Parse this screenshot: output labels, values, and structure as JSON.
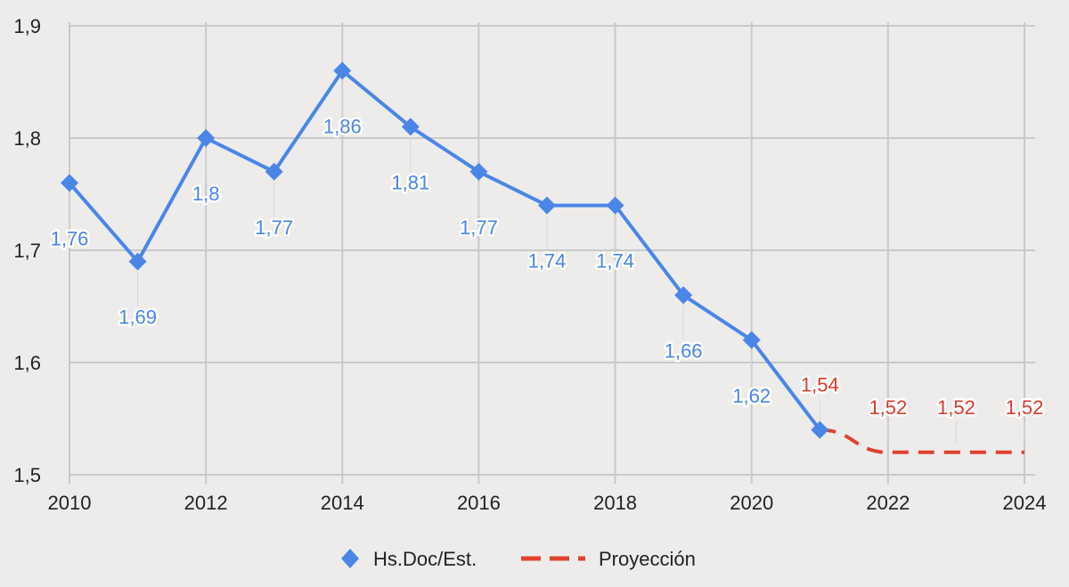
{
  "colors": {
    "actual": "#4a86e8",
    "projection": "#e0412f",
    "grid": "#c9c9c9",
    "label_actual": "#4a86e8",
    "label_projection": "#d93a2b"
  },
  "chart_data": {
    "type": "line",
    "title": "",
    "xlabel": "",
    "ylabel": "",
    "xlim": [
      2010,
      2024
    ],
    "ylim": [
      1.5,
      1.9
    ],
    "x_ticks": [
      "2010",
      "2012",
      "2014",
      "2016",
      "2018",
      "2020",
      "2022",
      "2024"
    ],
    "y_ticks": [
      "1,5",
      "1,6",
      "1,7",
      "1,8",
      "1,9"
    ],
    "grid": true,
    "legend_position": "bottom",
    "series": [
      {
        "name": "Hs.Doc/Est.",
        "style": "solid-diamond",
        "points": [
          {
            "x": 2010,
            "y": 1.76,
            "label": "1,76"
          },
          {
            "x": 2011,
            "y": 1.69,
            "label": "1,69"
          },
          {
            "x": 2012,
            "y": 1.8,
            "label": "1,8"
          },
          {
            "x": 2013,
            "y": 1.77,
            "label": "1,77"
          },
          {
            "x": 2014,
            "y": 1.86,
            "label": "1,86"
          },
          {
            "x": 2015,
            "y": 1.81,
            "label": "1,81"
          },
          {
            "x": 2016,
            "y": 1.77,
            "label": "1,77"
          },
          {
            "x": 2017,
            "y": 1.74,
            "label": "1,74"
          },
          {
            "x": 2018,
            "y": 1.74,
            "label": "1,74"
          },
          {
            "x": 2019,
            "y": 1.66,
            "label": "1,66"
          },
          {
            "x": 2020,
            "y": 1.62,
            "label": "1,62"
          },
          {
            "x": 2021,
            "y": 1.54,
            "label": ""
          }
        ]
      },
      {
        "name": "Proyección",
        "style": "dashed",
        "points": [
          {
            "x": 2021,
            "y": 1.54,
            "label": "1,54"
          },
          {
            "x": 2022,
            "y": 1.52,
            "label": "1,52"
          },
          {
            "x": 2023,
            "y": 1.52,
            "label": "1,52"
          },
          {
            "x": 2024,
            "y": 1.52,
            "label": "1,52"
          }
        ]
      }
    ]
  }
}
